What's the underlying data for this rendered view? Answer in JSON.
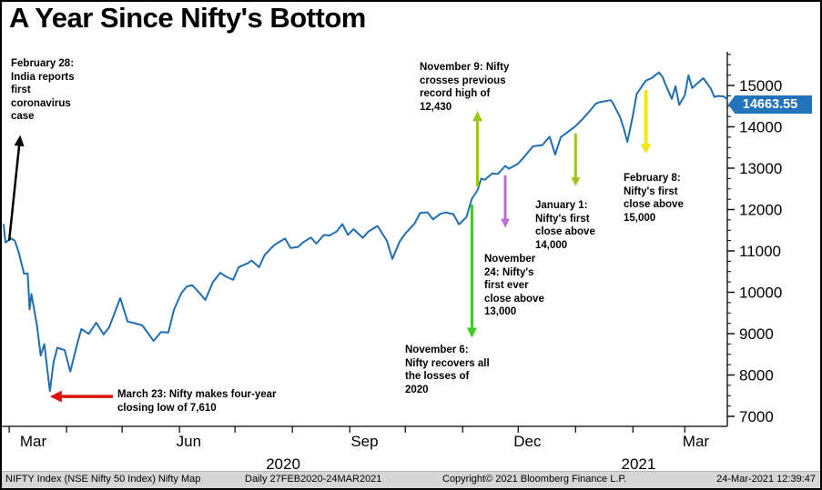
{
  "title": "A Year Since Nifty's Bottom",
  "colors": {
    "line": "#1f6eb4",
    "badge_bg": "#2273b9",
    "axis": "#000000",
    "footer_bg": "#d6d6d6"
  },
  "last_price": {
    "label": "14663.55",
    "value": 14663.55
  },
  "chart_data": {
    "type": "line",
    "title": "A Year Since Nifty's Bottom",
    "xlabel": "",
    "ylabel": "",
    "x_axis": {
      "start": "27FEB2020",
      "end": "24MAR2021",
      "month_tick_days": [
        3,
        34,
        64,
        95,
        125,
        156,
        187,
        217,
        248,
        278,
        309,
        340,
        368
      ],
      "tick_labels": [
        {
          "label": "Mar",
          "day": 16
        },
        {
          "label": "Jun",
          "day": 100
        },
        {
          "label": "Sep",
          "day": 195
        },
        {
          "label": "Dec",
          "day": 283
        },
        {
          "label": "Mar",
          "day": 374
        }
      ],
      "year_labels": [
        {
          "label": "2020",
          "day": 151
        },
        {
          "label": "2021",
          "day": 343
        }
      ]
    },
    "y_axis": {
      "ticks": [
        7000,
        8000,
        9000,
        10000,
        11000,
        12000,
        13000,
        14000,
        15000
      ],
      "minor_tick_step": 250,
      "displayed_range": [
        6750,
        15800
      ],
      "grid": false,
      "position": "right"
    },
    "last_value": 14663.55,
    "series": [
      {
        "name": "NIFTY Index",
        "color": "#1f6eb4",
        "x_unit": "days_since_27FEB2020",
        "points": [
          [
            0,
            11633
          ],
          [
            1,
            11202
          ],
          [
            4,
            11303
          ],
          [
            6,
            11251
          ],
          [
            8,
            10989
          ],
          [
            11,
            10451
          ],
          [
            13,
            10458
          ],
          [
            14,
            9590
          ],
          [
            15,
            9955
          ],
          [
            18,
            9197
          ],
          [
            20,
            8469
          ],
          [
            22,
            8745
          ],
          [
            25,
            7610
          ],
          [
            27,
            8318
          ],
          [
            29,
            8660
          ],
          [
            33,
            8598
          ],
          [
            36,
            8084
          ],
          [
            40,
            8792
          ],
          [
            42,
            9112
          ],
          [
            46,
            8994
          ],
          [
            50,
            9267
          ],
          [
            54,
            8981
          ],
          [
            57,
            9154
          ],
          [
            63,
            9860
          ],
          [
            67,
            9293
          ],
          [
            71,
            9251
          ],
          [
            75,
            9197
          ],
          [
            81,
            8823
          ],
          [
            85,
            9039
          ],
          [
            89,
            9029
          ],
          [
            92,
            9580
          ],
          [
            96,
            9979
          ],
          [
            99,
            10142
          ],
          [
            102,
            10167
          ],
          [
            106,
            9973
          ],
          [
            109,
            9814
          ],
          [
            113,
            10244
          ],
          [
            117,
            10471
          ],
          [
            120,
            10383
          ],
          [
            124,
            10302
          ],
          [
            127,
            10607
          ],
          [
            132,
            10705
          ],
          [
            134,
            10768
          ],
          [
            138,
            10607
          ],
          [
            141,
            10902
          ],
          [
            146,
            11133
          ],
          [
            148,
            11194
          ],
          [
            152,
            11300
          ],
          [
            155,
            11073
          ],
          [
            159,
            11095
          ],
          [
            162,
            11214
          ],
          [
            166,
            11322
          ],
          [
            169,
            11178
          ],
          [
            173,
            11385
          ],
          [
            176,
            11372
          ],
          [
            180,
            11472
          ],
          [
            183,
            11648
          ],
          [
            186,
            11387
          ],
          [
            189,
            11527
          ],
          [
            194,
            11317
          ],
          [
            197,
            11464
          ],
          [
            202,
            11605
          ],
          [
            207,
            11251
          ],
          [
            210,
            10806
          ],
          [
            214,
            11228
          ],
          [
            217,
            11417
          ],
          [
            222,
            11662
          ],
          [
            225,
            11914
          ],
          [
            229,
            11935
          ],
          [
            232,
            11762
          ],
          [
            236,
            11897
          ],
          [
            239,
            11930
          ],
          [
            243,
            11889
          ],
          [
            246,
            11642
          ],
          [
            250,
            11813
          ],
          [
            253,
            12263
          ],
          [
            256,
            12461
          ],
          [
            258,
            12749
          ],
          [
            260,
            12720
          ],
          [
            264,
            12874
          ],
          [
            267,
            12859
          ],
          [
            271,
            13055
          ],
          [
            273,
            12987
          ],
          [
            278,
            13109
          ],
          [
            281,
            13259
          ],
          [
            286,
            13529
          ],
          [
            291,
            13558
          ],
          [
            295,
            13761
          ],
          [
            298,
            13328
          ],
          [
            301,
            13749
          ],
          [
            308,
            13982
          ],
          [
            309,
            14018
          ],
          [
            313,
            14200
          ],
          [
            316,
            14347
          ],
          [
            320,
            14563
          ],
          [
            322,
            14595
          ],
          [
            328,
            14645
          ],
          [
            329,
            14590
          ],
          [
            333,
            14239
          ],
          [
            335,
            13968
          ],
          [
            337,
            13635
          ],
          [
            340,
            14281
          ],
          [
            342,
            14790
          ],
          [
            344,
            14924
          ],
          [
            347,
            15116
          ],
          [
            350,
            15173
          ],
          [
            354,
            15315
          ],
          [
            356,
            15209
          ],
          [
            358,
            14981
          ],
          [
            361,
            14676
          ],
          [
            363,
            14982
          ],
          [
            365,
            14529
          ],
          [
            368,
            14761
          ],
          [
            370,
            15245
          ],
          [
            372,
            14938
          ],
          [
            376,
            15098
          ],
          [
            378,
            15175
          ],
          [
            382,
            14929
          ],
          [
            384,
            14721
          ],
          [
            386,
            14744
          ],
          [
            389,
            14736
          ],
          [
            391,
            14663.55
          ]
        ]
      }
    ],
    "annotations": [
      {
        "id": "feb28",
        "text": "February 28: India reports first coronavirus case",
        "arrow": {
          "color": "#000000",
          "from": [
            3,
            11250
          ],
          "to": [
            9,
            13800
          ],
          "width": 2.5,
          "head_len": 12,
          "head_hw": 5.5
        }
      },
      {
        "id": "mar23",
        "text": "March 23: Nifty makes four-year closing low of 7,610",
        "arrow": {
          "color": "#dd1208",
          "from": [
            59,
            7480
          ],
          "to": [
            25,
            7480
          ],
          "width": 3.5,
          "head_len": 13,
          "head_hw": 6.5
        }
      },
      {
        "id": "nov9",
        "text": "November 9: Nifty crosses previous record high of 12,430",
        "arrow": {
          "color": "#9cc715",
          "from": [
            256,
            12560
          ],
          "to": [
            256,
            14380
          ],
          "width": 3,
          "head_len": 11,
          "head_hw": 5.5
        }
      },
      {
        "id": "nov6",
        "text": "November 6: Nifty recovers all the losses of 2020",
        "arrow": {
          "color": "#3bcc1f",
          "from": [
            253,
            12120
          ],
          "to": [
            253,
            8900
          ],
          "width": 3,
          "head_len": 11,
          "head_hw": 5.5
        }
      },
      {
        "id": "nov24",
        "text": "November 24: Nifty's first ever close above 13,000",
        "arrow": {
          "color": "#b96ed3",
          "from": [
            271,
            12830
          ],
          "to": [
            271,
            11560
          ],
          "width": 3,
          "head_len": 10,
          "head_hw": 5
        }
      },
      {
        "id": "jan1",
        "text": "January 1: Nifty's first close above 14,000",
        "arrow": {
          "color": "#9cc715",
          "from": [
            309,
            13840
          ],
          "to": [
            309,
            12560
          ],
          "width": 3,
          "head_len": 10,
          "head_hw": 5
        }
      },
      {
        "id": "feb8",
        "text": "February 8: Nifty's first close above 15,000",
        "arrow": {
          "color": "#f2e713",
          "from": [
            347,
            14890
          ],
          "to": [
            347,
            13350
          ],
          "width": 4,
          "head_len": 11,
          "head_hw": 6
        }
      }
    ]
  },
  "footer": {
    "items": [
      "NIFTY Index (NSE Nifty 50 Index) Nifty Map",
      "Daily 27FEB2020-24MAR2021",
      "Copyright© 2021 Bloomberg Finance L.P.",
      "24-Mar-2021 12:39:47"
    ]
  }
}
